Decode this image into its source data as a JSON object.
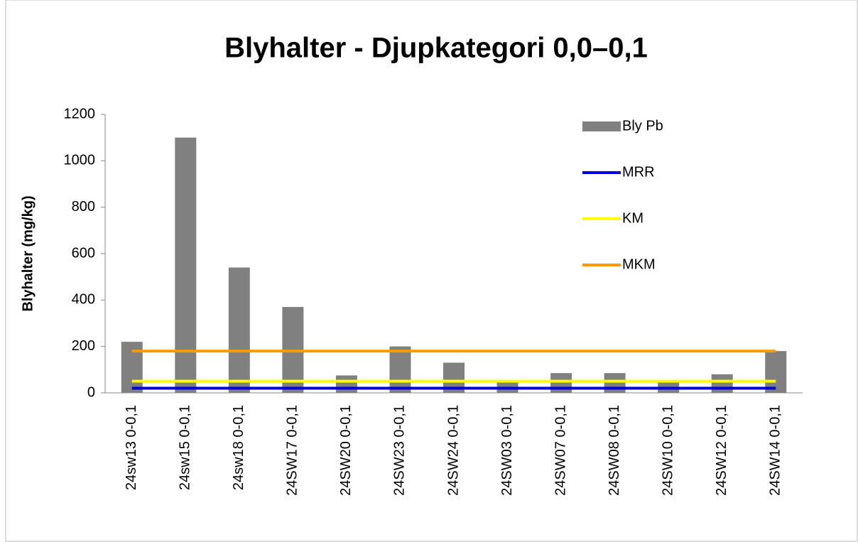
{
  "chart_data": {
    "type": "bar",
    "title": "Blyhalter - Djupkategori 0,0–0,1",
    "y_label": "Blyhalter (mg/kg)",
    "categories": [
      "24sw13 0-0,1",
      "24sw15 0-0,1",
      "24sw18 0-0,1",
      "24SW17 0-0,1",
      "24SW20 0-0,1",
      "24SW23 0-0,1",
      "24SW24 0-0,1",
      "24SW03 0-0,1",
      "24SW07 0-0,1",
      "24SW08 0-0,1",
      "24SW10 0-0,1",
      "24SW12 0-0,1",
      "24SW14 0-0,1"
    ],
    "series": [
      {
        "name": "Bly Pb",
        "type": "bar",
        "color": "#808080",
        "values": [
          220,
          1100,
          540,
          370,
          75,
          200,
          130,
          45,
          85,
          85,
          45,
          80,
          180
        ]
      },
      {
        "name": "MRR",
        "type": "line",
        "color": "#0000dd",
        "values": [
          20,
          20,
          20,
          20,
          20,
          20,
          20,
          20,
          20,
          20,
          20,
          20,
          20
        ]
      },
      {
        "name": "KM",
        "type": "line",
        "color": "#ffff00",
        "values": [
          50,
          50,
          50,
          50,
          50,
          50,
          50,
          50,
          50,
          50,
          50,
          50,
          50
        ]
      },
      {
        "name": "MKM",
        "type": "line",
        "color": "#ff9900",
        "values": [
          180,
          180,
          180,
          180,
          180,
          180,
          180,
          180,
          180,
          180,
          180,
          180,
          180
        ]
      }
    ],
    "ylim": [
      0,
      1200
    ],
    "yticks": [
      0,
      200,
      400,
      600,
      800,
      1000,
      1200
    ],
    "grid": false,
    "legend": "top-right"
  }
}
